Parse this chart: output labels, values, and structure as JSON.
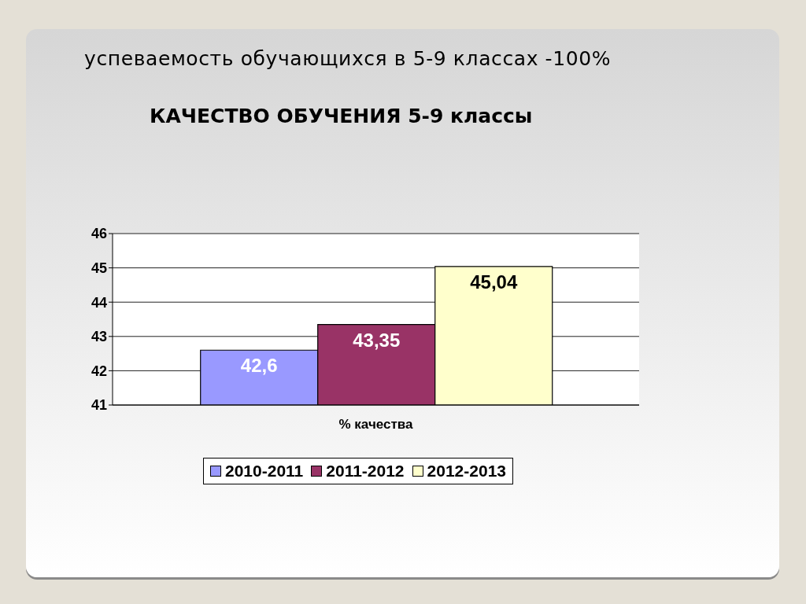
{
  "chart_data": {
    "type": "bar",
    "title": "успеваемость обучающихся в 5-9 классах -100%",
    "subtitle": "КАЧЕСТВО ОБУЧЕНИЯ 5-9 классы",
    "categories": [
      "% качества"
    ],
    "series": [
      {
        "name": "2010-2011",
        "color": "#9999ff",
        "values": [
          42.6
        ],
        "value_labels": [
          "42,6"
        ]
      },
      {
        "name": "2011-2012",
        "color": "#993366",
        "values": [
          43.35
        ],
        "value_labels": [
          "43,35"
        ]
      },
      {
        "name": "2012-2013",
        "color": "#ffffcc",
        "values": [
          45.04
        ],
        "value_labels": [
          "45,04"
        ]
      }
    ],
    "ylim": [
      41,
      46
    ],
    "yticks": [
      41,
      42,
      43,
      44,
      45,
      46
    ],
    "grid": "y",
    "legend": "bottom"
  }
}
